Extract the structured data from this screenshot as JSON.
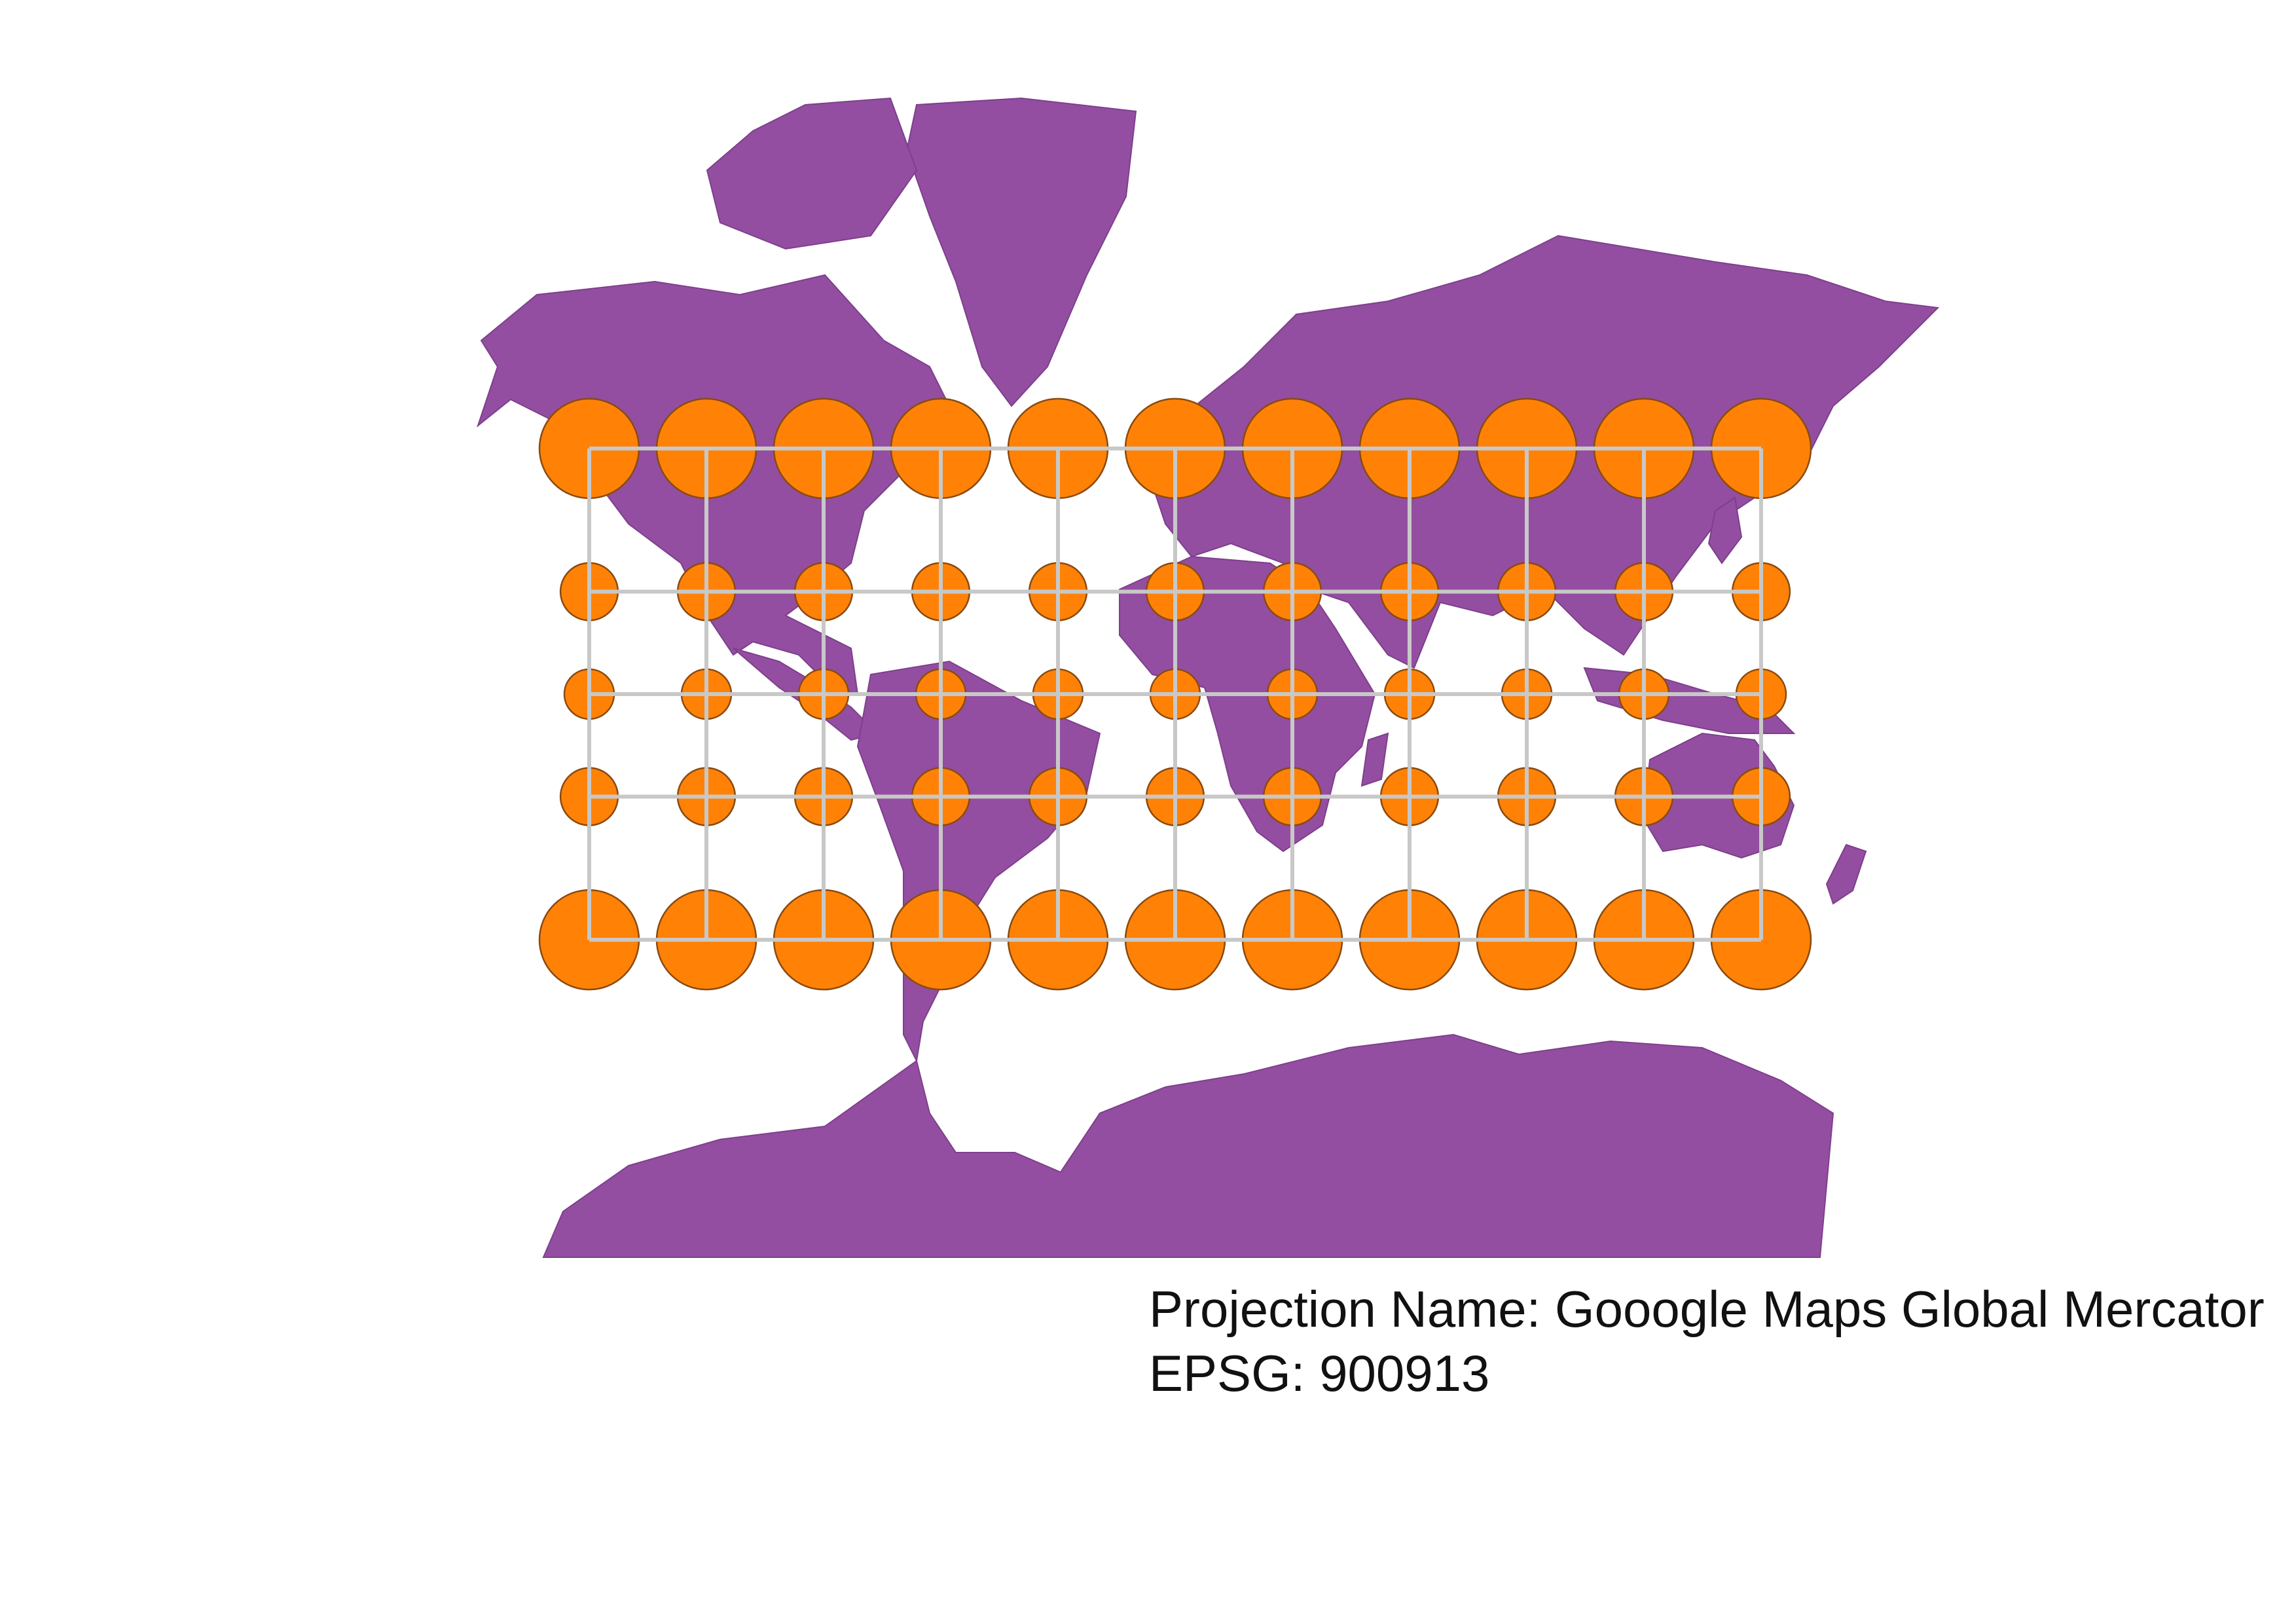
{
  "map": {
    "projection_label": "Projection Name: Gooogle Maps Global Mercator",
    "epsg_label": "EPSG: 900913",
    "colors": {
      "land": "#934ea1",
      "indicatrix": "#ff8207",
      "graticule": "#c8c8c8",
      "background": "#ffffff"
    },
    "graticule": {
      "longitudes": [
        -180,
        -144,
        -108,
        -72,
        -36,
        0,
        36,
        72,
        108,
        144,
        180
      ],
      "latitudes": [
        60,
        30,
        0,
        -30,
        -60
      ]
    },
    "indicatrix_radius_km": 800
  }
}
